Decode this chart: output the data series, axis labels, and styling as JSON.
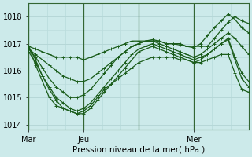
{
  "bg_color": "#cceaea",
  "grid_major_color": "#aacccc",
  "grid_minor_color": "#bbdddd",
  "line_color": "#1a5c1a",
  "xlabel": "Pression niveau de la mer( hPa )",
  "ylim": [
    1013.8,
    1018.5
  ],
  "xlim": [
    0,
    96
  ],
  "yticks": [
    1014,
    1015,
    1016,
    1017,
    1018
  ],
  "xtick_pos": [
    0,
    24,
    48,
    72
  ],
  "xtick_labels": [
    "Mar",
    "Jeu",
    "",
    "Mer"
  ],
  "day_vlines": [
    0,
    24,
    48,
    72
  ],
  "minor_vlines_count": 12,
  "lines": [
    {
      "x": [
        0,
        3,
        6,
        9,
        12,
        15,
        18,
        21,
        24,
        27,
        30,
        33,
        36,
        39,
        42,
        45,
        48,
        51,
        54,
        57,
        60,
        63,
        66,
        69,
        72,
        75,
        78,
        81,
        84,
        87,
        90,
        93,
        96
      ],
      "y": [
        1016.9,
        1016.8,
        1016.7,
        1016.6,
        1016.5,
        1016.5,
        1016.5,
        1016.5,
        1016.4,
        1016.5,
        1016.6,
        1016.7,
        1016.8,
        1016.9,
        1017.0,
        1017.1,
        1017.1,
        1017.1,
        1017.1,
        1017.1,
        1017.0,
        1017.0,
        1017.0,
        1016.9,
        1016.9,
        1016.9,
        1016.9,
        1017.2,
        1017.5,
        1017.8,
        1018.0,
        1017.85,
        1017.75
      ]
    },
    {
      "x": [
        0,
        3,
        6,
        9,
        12,
        15,
        18,
        21,
        24,
        27,
        30,
        33,
        36,
        39,
        42,
        45,
        48,
        51,
        54,
        57,
        60,
        63,
        66,
        69,
        72,
        75,
        78,
        81,
        84,
        87,
        90,
        93,
        96
      ],
      "y": [
        1016.8,
        1016.6,
        1016.4,
        1016.2,
        1016.0,
        1015.8,
        1015.7,
        1015.6,
        1015.6,
        1015.7,
        1015.9,
        1016.1,
        1016.3,
        1016.5,
        1016.7,
        1016.9,
        1017.0,
        1017.1,
        1017.15,
        1017.1,
        1017.0,
        1017.0,
        1016.95,
        1016.9,
        1016.85,
        1017.0,
        1017.3,
        1017.6,
        1017.85,
        1018.1,
        1017.9,
        1017.6,
        1017.4
      ]
    },
    {
      "x": [
        0,
        3,
        6,
        9,
        12,
        15,
        18,
        21,
        24,
        27,
        30,
        33,
        36,
        39,
        42,
        45,
        48,
        51,
        54,
        57,
        60,
        63,
        66,
        69,
        72,
        75,
        78,
        81,
        84,
        87,
        90,
        93,
        96
      ],
      "y": [
        1016.8,
        1016.5,
        1016.1,
        1015.7,
        1015.4,
        1015.2,
        1015.0,
        1015.0,
        1015.1,
        1015.3,
        1015.6,
        1015.9,
        1016.2,
        1016.5,
        1016.7,
        1016.9,
        1017.0,
        1017.1,
        1017.1,
        1017.0,
        1016.9,
        1016.8,
        1016.7,
        1016.6,
        1016.5,
        1016.6,
        1016.8,
        1017.0,
        1017.2,
        1017.4,
        1017.2,
        1016.9,
        1016.6
      ]
    },
    {
      "x": [
        0,
        3,
        6,
        9,
        12,
        15,
        18,
        21,
        24,
        27,
        30,
        33,
        36,
        39,
        42,
        45,
        48,
        51,
        54,
        57,
        60,
        63,
        66,
        69,
        72,
        75,
        78,
        81,
        84,
        87,
        90,
        93,
        96
      ],
      "y": [
        1016.7,
        1016.3,
        1015.8,
        1015.4,
        1015.0,
        1014.8,
        1014.6,
        1014.5,
        1014.6,
        1014.8,
        1015.1,
        1015.4,
        1015.7,
        1016.0,
        1016.3,
        1016.6,
        1016.8,
        1016.9,
        1017.0,
        1016.9,
        1016.8,
        1016.7,
        1016.6,
        1016.5,
        1016.4,
        1016.5,
        1016.6,
        1016.8,
        1017.0,
        1017.15,
        1016.4,
        1015.7,
        1015.4
      ]
    },
    {
      "x": [
        0,
        3,
        6,
        9,
        12,
        15,
        18,
        21,
        24,
        27,
        30,
        33,
        36,
        39,
        42,
        45,
        48,
        51,
        54,
        57,
        60,
        63,
        66,
        69,
        72,
        75,
        78,
        81,
        84,
        87,
        90,
        93,
        96
      ],
      "y": [
        1016.9,
        1016.4,
        1015.8,
        1015.3,
        1014.9,
        1014.6,
        1014.5,
        1014.4,
        1014.4,
        1014.6,
        1014.9,
        1015.2,
        1015.5,
        1015.8,
        1016.1,
        1016.4,
        1016.7,
        1016.8,
        1016.9,
        1016.8,
        1016.7,
        1016.6,
        1016.5,
        1016.4,
        1016.3,
        1016.3,
        1016.4,
        1016.5,
        1016.6,
        1016.6,
        1015.9,
        1015.3,
        1015.2
      ]
    },
    {
      "x": [
        0,
        3,
        6,
        9,
        12,
        15,
        18,
        21,
        24,
        27,
        30,
        33,
        36,
        39,
        42,
        45,
        48,
        51,
        54,
        57,
        60,
        63,
        66,
        69,
        72,
        75,
        78,
        81,
        84,
        87,
        90,
        93,
        96
      ],
      "y": [
        1016.9,
        1016.2,
        1015.6,
        1015.0,
        1014.7,
        1014.6,
        1014.5,
        1014.4,
        1014.5,
        1014.7,
        1015.0,
        1015.3,
        1015.5,
        1015.7,
        1015.9,
        1016.1,
        1016.3,
        1016.4,
        1016.5,
        1016.5,
        1016.5,
        1016.5,
        1016.4,
        1016.4,
        1016.3,
        1016.4,
        1016.6,
        1016.8,
        1017.0,
        1017.2,
        1016.5,
        1015.9,
        1015.6
      ]
    }
  ]
}
